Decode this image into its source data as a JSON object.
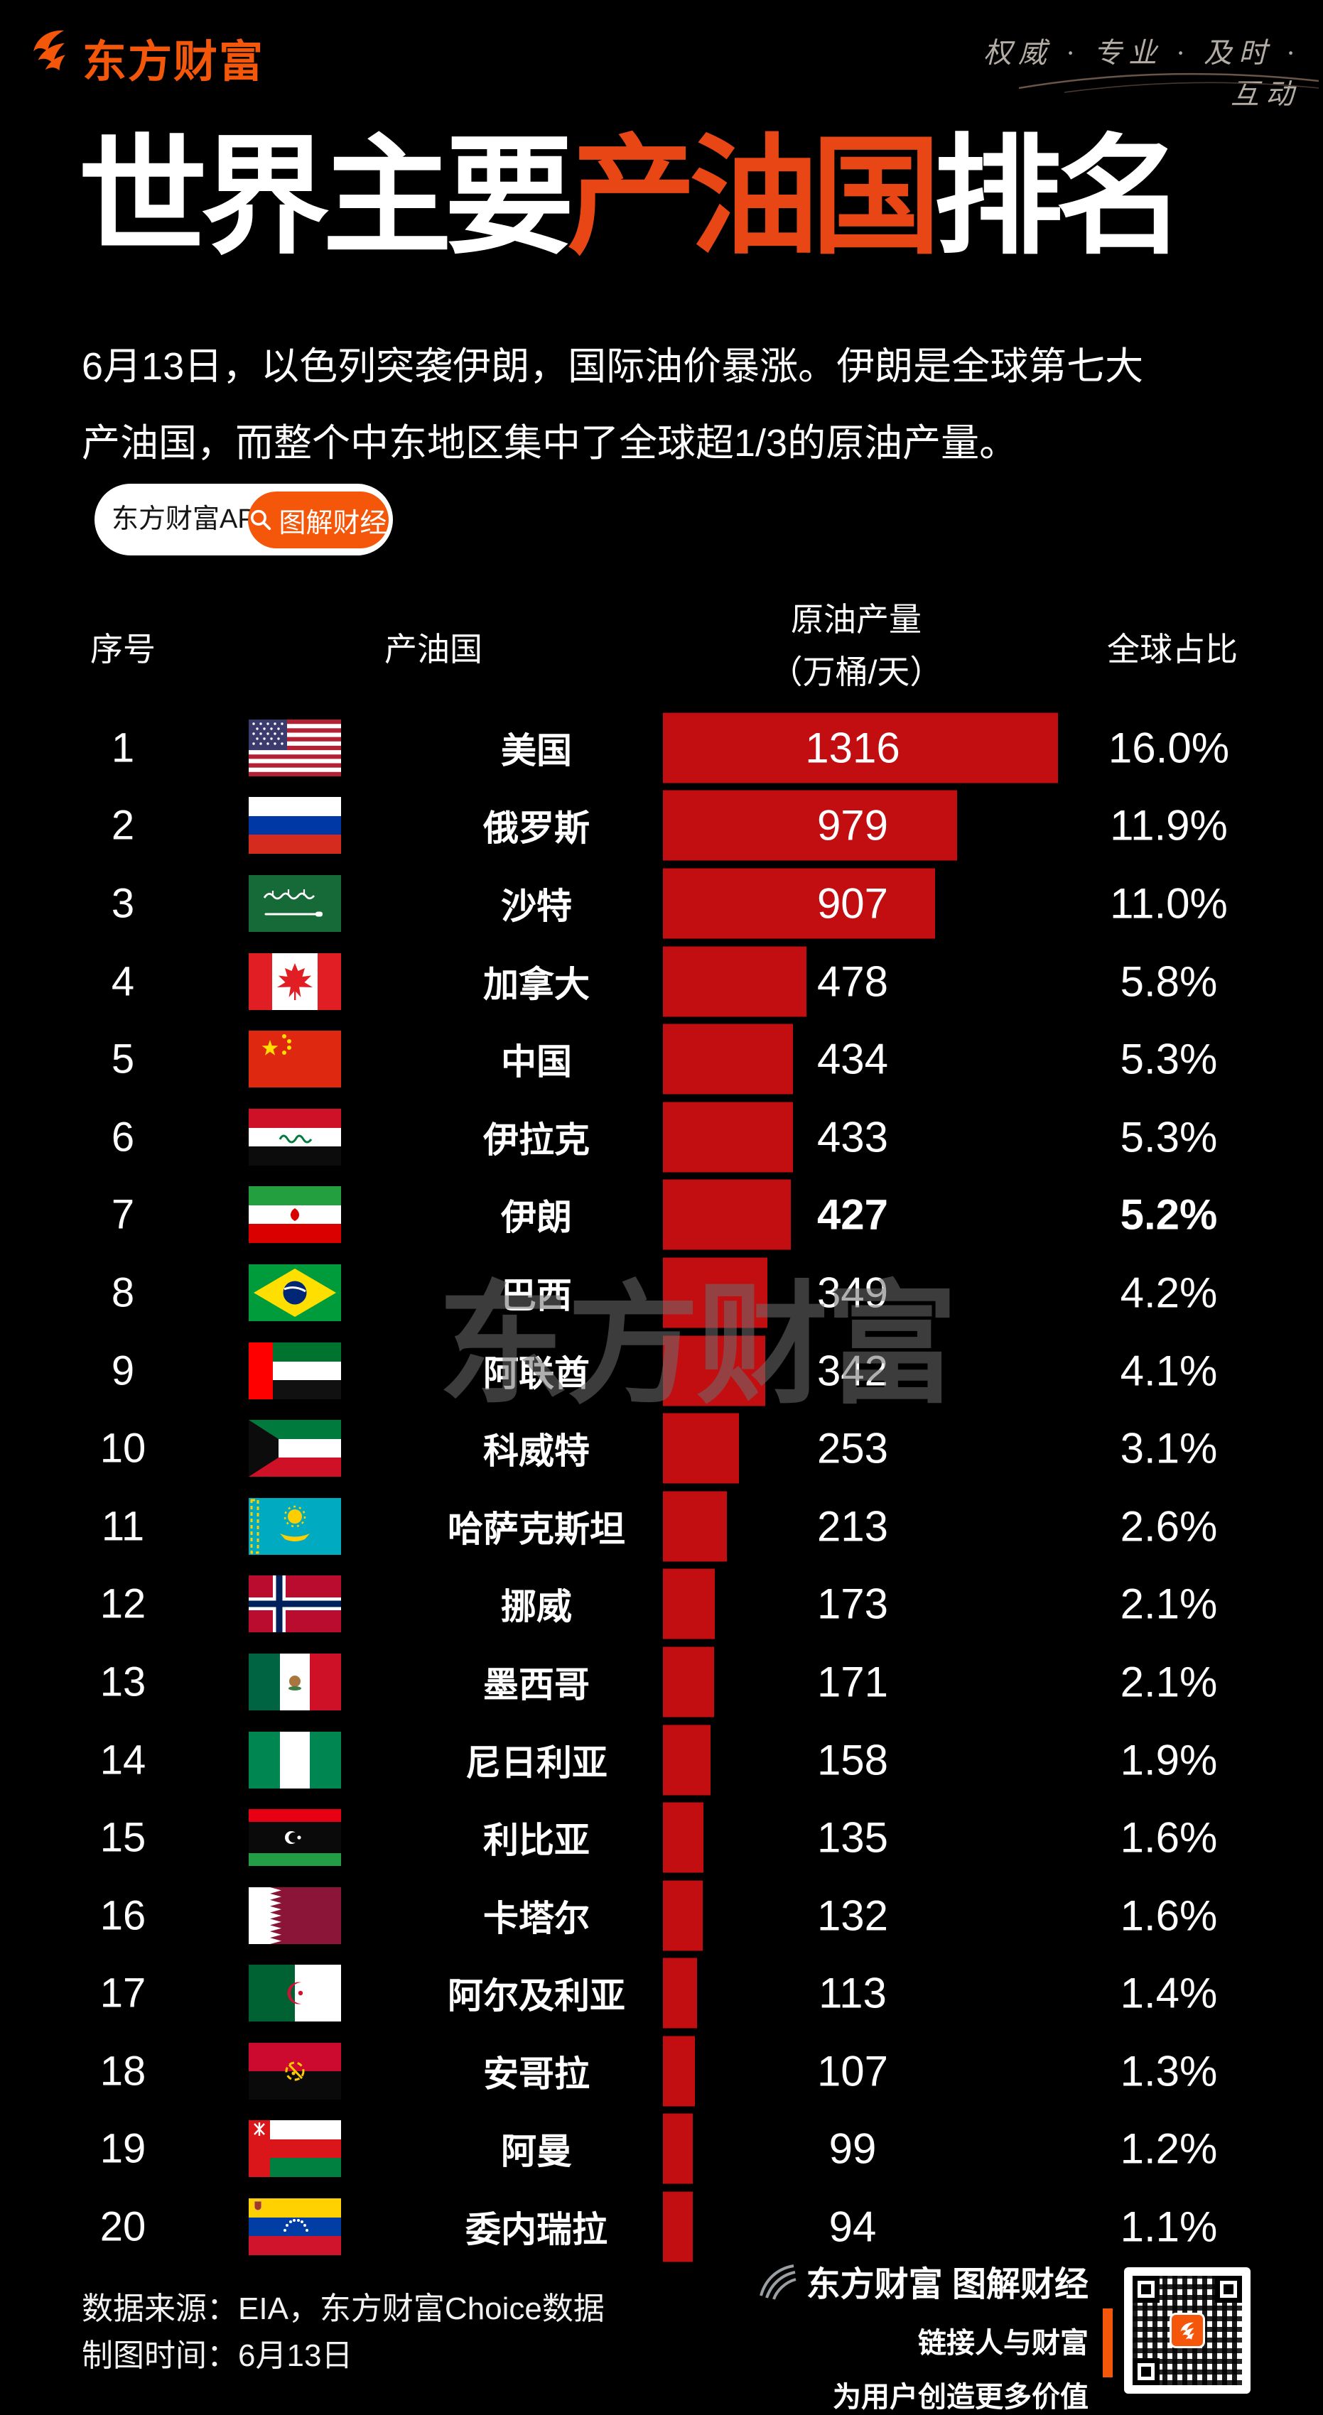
{
  "colors": {
    "accent_orange": "#f4570a",
    "bar_red": "#c20d11",
    "title_highlight": "#e84715",
    "background": "#000000"
  },
  "topbar": {
    "brand": "东方财富",
    "slogan": "权威 · 专业 · 及时 · 互动"
  },
  "title": {
    "part1": "世界主要",
    "highlight": "产油国",
    "part2": "排名"
  },
  "intro": {
    "line1": "6月13日，以色列突袭伊朗，国际油价暴涨。伊朗是全球第七大",
    "line2": "产油国，而整个中东地区集中了全球超1/3的原油产量。"
  },
  "app_pill": {
    "app_label": "东方财富APP",
    "column_label": "图解财经",
    "icon": "search-icon"
  },
  "table_headers": {
    "rank": "序号",
    "country": "产油国",
    "output_line1": "原油产量",
    "output_line2": "（万桶/天）",
    "share": "全球占比"
  },
  "chart_data": {
    "type": "bar",
    "title": "世界主要产油国排名",
    "value_label": "原油产量",
    "unit": "万桶/天",
    "share_label": "全球占比",
    "xlim": [
      0,
      1400
    ],
    "legend": false,
    "grid": false,
    "rows": [
      {
        "rank": 1,
        "country": "美国",
        "flag": "us",
        "value": 1316,
        "share": "16.0%",
        "emphasis": false
      },
      {
        "rank": 2,
        "country": "俄罗斯",
        "flag": "ru",
        "value": 979,
        "share": "11.9%",
        "emphasis": false
      },
      {
        "rank": 3,
        "country": "沙特",
        "flag": "sa",
        "value": 907,
        "share": "11.0%",
        "emphasis": false
      },
      {
        "rank": 4,
        "country": "加拿大",
        "flag": "ca",
        "value": 478,
        "share": "5.8%",
        "emphasis": false
      },
      {
        "rank": 5,
        "country": "中国",
        "flag": "cn",
        "value": 434,
        "share": "5.3%",
        "emphasis": false
      },
      {
        "rank": 6,
        "country": "伊拉克",
        "flag": "iq",
        "value": 433,
        "share": "5.3%",
        "emphasis": false
      },
      {
        "rank": 7,
        "country": "伊朗",
        "flag": "ir",
        "value": 427,
        "share": "5.2%",
        "emphasis": true
      },
      {
        "rank": 8,
        "country": "巴西",
        "flag": "br",
        "value": 349,
        "share": "4.2%",
        "emphasis": false
      },
      {
        "rank": 9,
        "country": "阿联酋",
        "flag": "ae",
        "value": 342,
        "share": "4.1%",
        "emphasis": false
      },
      {
        "rank": 10,
        "country": "科威特",
        "flag": "kw",
        "value": 253,
        "share": "3.1%",
        "emphasis": false
      },
      {
        "rank": 11,
        "country": "哈萨克斯坦",
        "flag": "kz",
        "value": 213,
        "share": "2.6%",
        "emphasis": false
      },
      {
        "rank": 12,
        "country": "挪威",
        "flag": "no",
        "value": 173,
        "share": "2.1%",
        "emphasis": false
      },
      {
        "rank": 13,
        "country": "墨西哥",
        "flag": "mx",
        "value": 171,
        "share": "2.1%",
        "emphasis": false
      },
      {
        "rank": 14,
        "country": "尼日利亚",
        "flag": "ng",
        "value": 158,
        "share": "1.9%",
        "emphasis": false
      },
      {
        "rank": 15,
        "country": "利比亚",
        "flag": "ly",
        "value": 135,
        "share": "1.6%",
        "emphasis": false
      },
      {
        "rank": 16,
        "country": "卡塔尔",
        "flag": "qa",
        "value": 132,
        "share": "1.6%",
        "emphasis": false
      },
      {
        "rank": 17,
        "country": "阿尔及利亚",
        "flag": "dz",
        "value": 113,
        "share": "1.4%",
        "emphasis": false
      },
      {
        "rank": 18,
        "country": "安哥拉",
        "flag": "ao",
        "value": 107,
        "share": "1.3%",
        "emphasis": false
      },
      {
        "rank": 19,
        "country": "阿曼",
        "flag": "om",
        "value": 99,
        "share": "1.2%",
        "emphasis": false
      },
      {
        "rank": 20,
        "country": "委内瑞拉",
        "flag": "ve",
        "value": 94,
        "share": "1.1%",
        "emphasis": false
      }
    ]
  },
  "watermark": "东方财富",
  "footer": {
    "source_line": "数据来源：EIA，东方财富Choice数据",
    "date_line": "制图时间：6月13日",
    "brand_line": "东方财富 图解财经",
    "slogan_line1": "链接人与财富",
    "slogan_line2": "为用户创造更多价值"
  }
}
